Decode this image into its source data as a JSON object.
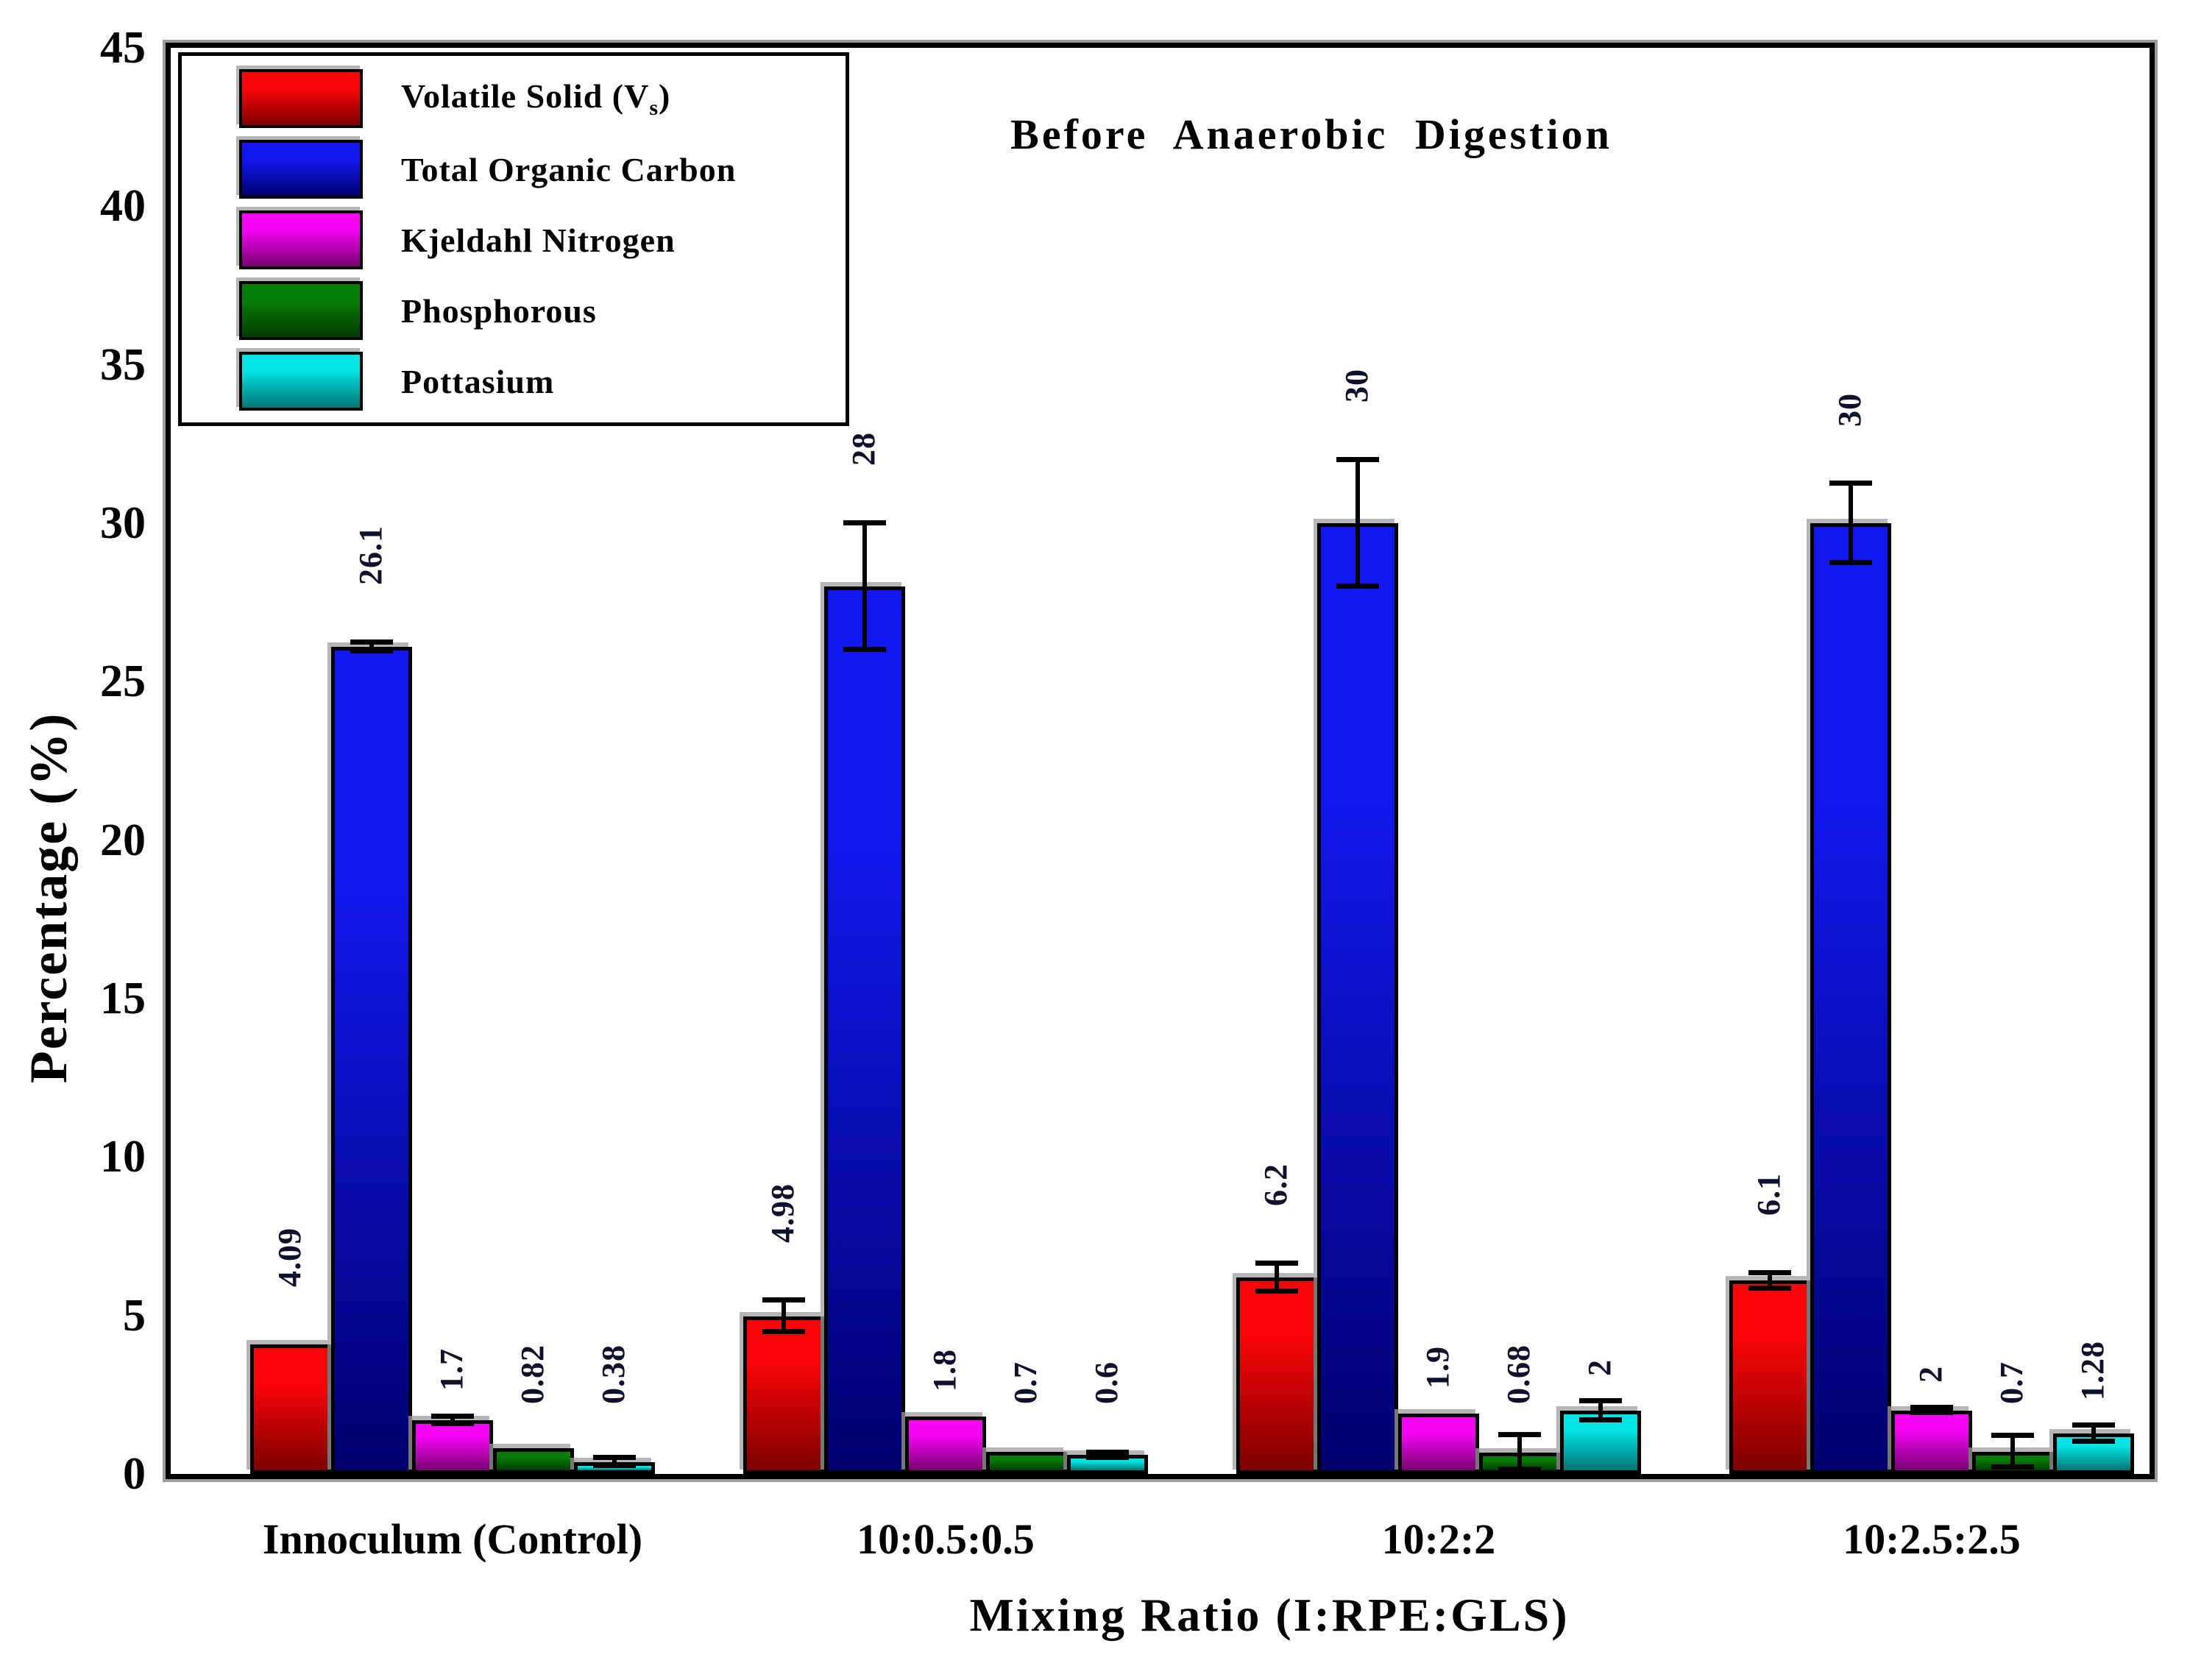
{
  "title": "Before Anaerobic Digestion",
  "y_axis": {
    "label": "Percentage (%)",
    "min": 0,
    "max": 45,
    "tick_step": 5
  },
  "x_axis": {
    "label": "Mixing Ratio (I:RPE:GLS)"
  },
  "legend": {
    "items": [
      {
        "pre": "Volatile Solid (V",
        "sub": "s",
        "post": ")"
      },
      {
        "pre": "Total Organic Carbon",
        "sub": "",
        "post": ""
      },
      {
        "pre": "Kjeldahl Nitrogen",
        "sub": "",
        "post": ""
      },
      {
        "pre": "Phosphorous",
        "sub": "",
        "post": ""
      },
      {
        "pre": "Pottasium",
        "sub": "",
        "post": ""
      }
    ]
  },
  "chart_data": {
    "type": "bar",
    "title": "Before Anaerobic Digestion",
    "xlabel": "Mixing Ratio (I:RPE:GLS)",
    "ylabel": "Percentage (%)",
    "ylim": [
      0,
      45
    ],
    "ytick_step": 5,
    "grid": false,
    "legend_position": "top-left",
    "error_bars": true,
    "categories": [
      "Innoculum (Control)",
      "10:0.5:0.5",
      "10:2:2",
      "10:2.5:2.5"
    ],
    "series": [
      {
        "name": "Volatile Solid (Vs)",
        "color_top": "#fb0407",
        "color_bottom": "#7c0000",
        "values": [
          4.09,
          4.98,
          6.2,
          6.1
        ],
        "errors": [
          0,
          0.5,
          0.45,
          0.25
        ],
        "labels": [
          "4.09",
          "4.98",
          "6.2",
          "6.1"
        ]
      },
      {
        "name": "Total Organic Carbon",
        "color_top": "#1318f0",
        "color_bottom": "#00006e",
        "values": [
          26.1,
          28,
          30,
          30
        ],
        "errors": [
          0.15,
          2.0,
          2.0,
          1.25
        ],
        "labels": [
          "26.1",
          "28",
          "30",
          "30"
        ]
      },
      {
        "name": "Kjeldahl Nitrogen",
        "color_top": "#f704f7",
        "color_bottom": "#76006e",
        "values": [
          1.7,
          1.8,
          1.9,
          2
        ],
        "errors": [
          0.12,
          0,
          0,
          0.08
        ],
        "labels": [
          "1.7",
          "1.8",
          "1.9",
          "2"
        ]
      },
      {
        "name": "Phosphorous",
        "color_top": "#077d07",
        "color_bottom": "#013c01",
        "values": [
          0.82,
          0.7,
          0.68,
          0.7
        ],
        "errors": [
          0,
          0,
          0.55,
          0.5
        ],
        "labels": [
          "0.82",
          "0.7",
          "0.68",
          "0.7"
        ]
      },
      {
        "name": "Pottasium",
        "color_top": "#04e3e3",
        "color_bottom": "#007575",
        "values": [
          0.38,
          0.6,
          2,
          1.28
        ],
        "errors": [
          0.12,
          0.08,
          0.3,
          0.25
        ],
        "labels": [
          "0.38",
          "0.6",
          "2",
          "1.28"
        ]
      }
    ]
  }
}
